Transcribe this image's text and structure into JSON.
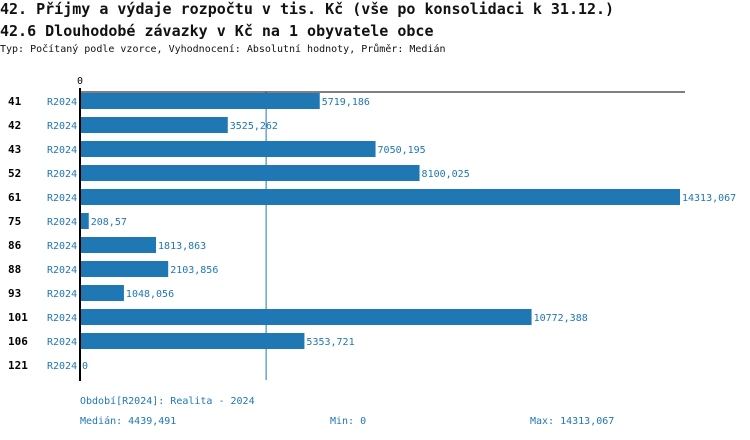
{
  "title": "42. Příjmy a výdaje rozpočtu v tis. Kč (vše po konsolidaci k 31.12.)",
  "subtitle": "42.6 Dlouhodobé závazky v Kč na 1 obyvatele obce",
  "description": "Typ: Počítaný podle vzorce, Vyhodnocení: Absolutní hodnoty, Průměr: Medián",
  "chart_data": {
    "type": "bar",
    "orientation": "horizontal",
    "x_tick_labels": [
      "0"
    ],
    "categories": [
      "41",
      "42",
      "43",
      "52",
      "61",
      "75",
      "86",
      "88",
      "93",
      "101",
      "106",
      "121"
    ],
    "series": [
      {
        "name": "R2024",
        "values": [
          5719.186,
          3525.262,
          7050.195,
          8100.025,
          14313.067,
          208.57,
          1813.863,
          2103.856,
          1048.056,
          10772.388,
          5353.721,
          0
        ]
      }
    ],
    "value_labels": [
      "5719,186",
      "3525,262",
      "7050,195",
      "8100,025",
      "14313,067",
      "208,57",
      "1813,863",
      "2103,856",
      "1048,056",
      "10772,388",
      "5353,721",
      "0"
    ],
    "median": 4439.491,
    "xlim": [
      0,
      14313.067
    ],
    "bar_color": "#1f77b4"
  },
  "footer": {
    "period": "Období[R2024]: Realita - 2024",
    "median": "Medián: 4439,491",
    "min": "Min: 0",
    "max": "Max: 14313,067"
  }
}
